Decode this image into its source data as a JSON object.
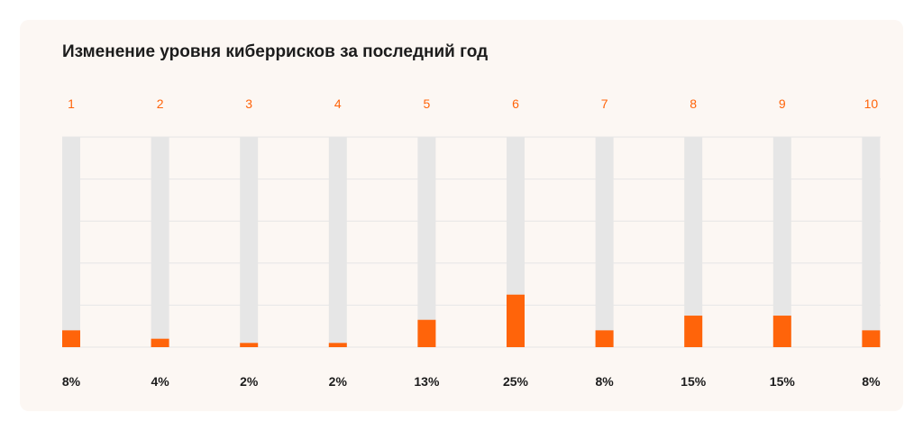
{
  "chart_data": {
    "type": "bar",
    "title": "Изменение уровня киберрисков за последний год",
    "categories": [
      "1",
      "2",
      "3",
      "4",
      "5",
      "6",
      "7",
      "8",
      "9",
      "10"
    ],
    "values": [
      8,
      4,
      2,
      2,
      13,
      25,
      8,
      15,
      15,
      8
    ],
    "value_labels": [
      "8%",
      "4%",
      "2%",
      "2%",
      "13%",
      "25%",
      "8%",
      "15%",
      "15%",
      "8%"
    ],
    "ylim": [
      0,
      100
    ],
    "grid": true,
    "colors": {
      "bar": "#ff640a",
      "track": "#e6e6e6",
      "category_label": "#ff640a",
      "value_label": "#1c1c1c",
      "gridline": "#e6e6e6",
      "card_background": "#fcf7f3"
    }
  }
}
